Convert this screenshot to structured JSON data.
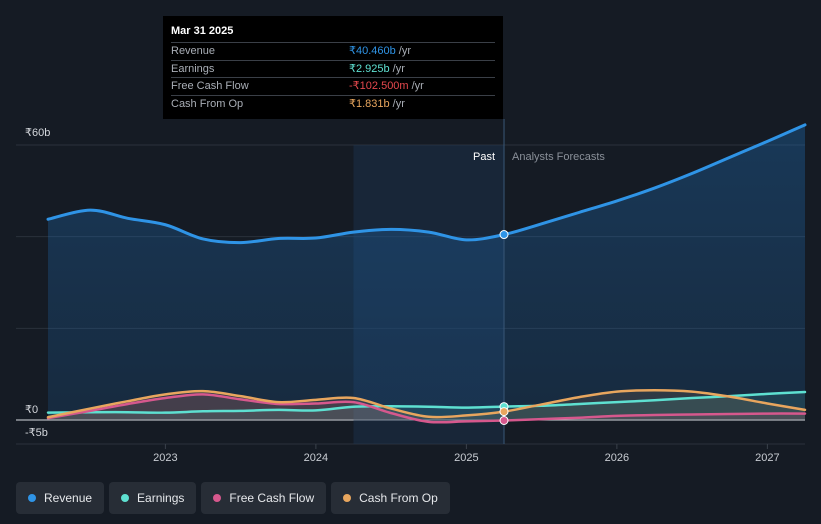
{
  "chart_data": {
    "type": "line",
    "title": "",
    "currency_symbol": "₹",
    "y_tick_labels": [
      {
        "value": 60,
        "label": "₹60b"
      },
      {
        "value": 0,
        "label": "₹0"
      },
      {
        "value": -5,
        "label": "-₹5b"
      }
    ],
    "ylim": [
      -5,
      60
    ],
    "xlim": [
      2022.22,
      2027.25
    ],
    "x_tick_labels": [
      {
        "value": 2023.0,
        "label": "2023"
      },
      {
        "value": 2024.0,
        "label": "2024"
      },
      {
        "value": 2025.0,
        "label": "2025"
      },
      {
        "value": 2026.0,
        "label": "2026"
      },
      {
        "value": 2027.0,
        "label": "2027"
      }
    ],
    "past_start": 2024.25,
    "divider_x": 2025.25,
    "past_label": "Past",
    "forecast_label": "Analysts Forecasts",
    "series": [
      {
        "name": "Revenue",
        "color": "#2f94e6",
        "fill": true,
        "points": [
          [
            2022.22,
            43.8
          ],
          [
            2022.5,
            45.8
          ],
          [
            2022.75,
            44.0
          ],
          [
            2023.0,
            42.6
          ],
          [
            2023.25,
            39.5
          ],
          [
            2023.5,
            38.7
          ],
          [
            2023.75,
            39.6
          ],
          [
            2024.0,
            39.7
          ],
          [
            2024.25,
            41.0
          ],
          [
            2024.5,
            41.6
          ],
          [
            2024.75,
            41.0
          ],
          [
            2025.0,
            39.3
          ],
          [
            2025.25,
            40.46
          ],
          [
            2025.5,
            42.8
          ],
          [
            2025.75,
            45.3
          ],
          [
            2026.0,
            47.8
          ],
          [
            2026.25,
            50.6
          ],
          [
            2026.5,
            53.8
          ],
          [
            2026.75,
            57.3
          ],
          [
            2027.0,
            60.8
          ],
          [
            2027.25,
            64.4
          ]
        ]
      },
      {
        "name": "Earnings",
        "color": "#5ee0d1",
        "fill": false,
        "points": [
          [
            2022.22,
            1.6
          ],
          [
            2022.5,
            1.7
          ],
          [
            2022.75,
            1.7
          ],
          [
            2023.0,
            1.6
          ],
          [
            2023.25,
            1.9
          ],
          [
            2023.5,
            2.0
          ],
          [
            2023.75,
            2.2
          ],
          [
            2024.0,
            2.1
          ],
          [
            2024.25,
            2.9
          ],
          [
            2024.5,
            3.0
          ],
          [
            2024.75,
            2.9
          ],
          [
            2025.0,
            2.7
          ],
          [
            2025.25,
            2.925
          ],
          [
            2025.5,
            3.1
          ],
          [
            2025.75,
            3.5
          ],
          [
            2026.0,
            3.9
          ],
          [
            2026.25,
            4.3
          ],
          [
            2026.5,
            4.8
          ],
          [
            2026.75,
            5.2
          ],
          [
            2027.0,
            5.7
          ],
          [
            2027.25,
            6.1
          ]
        ]
      },
      {
        "name": "Free Cash Flow",
        "color": "#d6588d",
        "fill": false,
        "points": [
          [
            2022.22,
            0.4
          ],
          [
            2022.5,
            2.0
          ],
          [
            2022.75,
            3.5
          ],
          [
            2023.0,
            4.8
          ],
          [
            2023.25,
            5.6
          ],
          [
            2023.5,
            4.5
          ],
          [
            2023.75,
            3.5
          ],
          [
            2024.0,
            3.6
          ],
          [
            2024.25,
            3.9
          ],
          [
            2024.5,
            1.5
          ],
          [
            2024.75,
            -0.4
          ],
          [
            2025.0,
            -0.3
          ],
          [
            2025.25,
            -0.1025
          ],
          [
            2025.5,
            0.2
          ],
          [
            2025.75,
            0.5
          ],
          [
            2026.0,
            0.9
          ],
          [
            2026.25,
            1.1
          ],
          [
            2026.5,
            1.2
          ],
          [
            2026.75,
            1.3
          ],
          [
            2027.0,
            1.4
          ],
          [
            2027.25,
            1.4
          ]
        ]
      },
      {
        "name": "Cash From Op",
        "color": "#e8a65e",
        "fill": false,
        "points": [
          [
            2022.22,
            0.6
          ],
          [
            2022.5,
            2.5
          ],
          [
            2022.75,
            4.1
          ],
          [
            2023.0,
            5.6
          ],
          [
            2023.25,
            6.3
          ],
          [
            2023.5,
            5.2
          ],
          [
            2023.75,
            3.9
          ],
          [
            2024.0,
            4.4
          ],
          [
            2024.25,
            4.8
          ],
          [
            2024.5,
            2.5
          ],
          [
            2024.75,
            0.7
          ],
          [
            2025.0,
            1.0
          ],
          [
            2025.25,
            1.831
          ],
          [
            2025.5,
            3.4
          ],
          [
            2025.75,
            5.0
          ],
          [
            2026.0,
            6.2
          ],
          [
            2026.25,
            6.5
          ],
          [
            2026.5,
            6.2
          ],
          [
            2026.75,
            5.1
          ],
          [
            2027.0,
            3.6
          ],
          [
            2027.25,
            2.2
          ]
        ]
      }
    ]
  },
  "tooltip": {
    "date": "Mar 31 2025",
    "rows": [
      {
        "label": "Revenue",
        "value": "₹40.460b",
        "unit": "/yr",
        "color": "#2f94e6"
      },
      {
        "label": "Earnings",
        "value": "₹2.925b",
        "unit": "/yr",
        "color": "#5ee0d1"
      },
      {
        "label": "Free Cash Flow",
        "value": "-₹102.500m",
        "unit": "/yr",
        "color": "#e5484d"
      },
      {
        "label": "Cash From Op",
        "value": "₹1.831b",
        "unit": "/yr",
        "color": "#e8a65e"
      }
    ]
  },
  "legend": [
    {
      "label": "Revenue",
      "color": "#2f94e6"
    },
    {
      "label": "Earnings",
      "color": "#5ee0d1"
    },
    {
      "label": "Free Cash Flow",
      "color": "#d6588d"
    },
    {
      "label": "Cash From Op",
      "color": "#e8a65e"
    }
  ]
}
